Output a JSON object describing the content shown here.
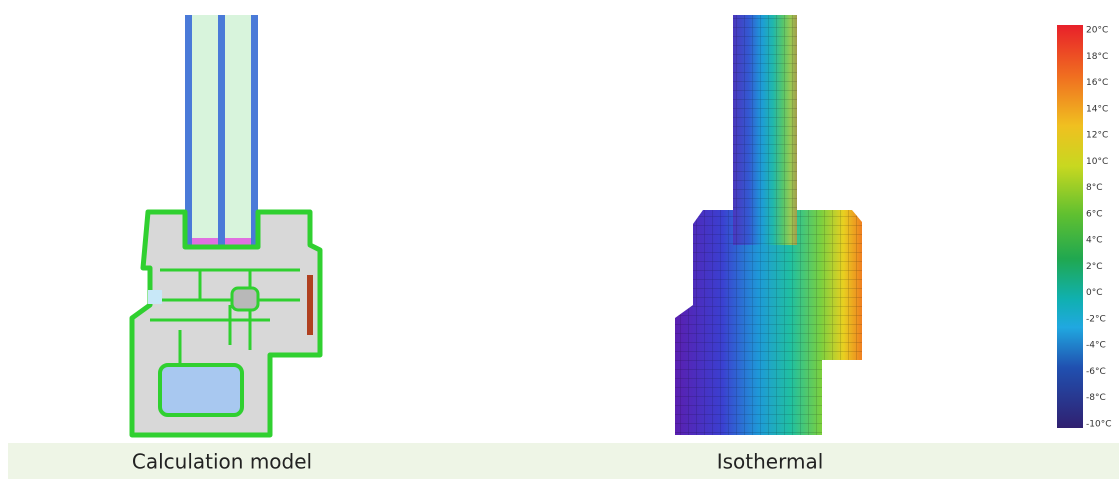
{
  "panels": [
    {
      "caption": "Calculation model"
    },
    {
      "caption": "Isothermal"
    }
  ],
  "color_scale": {
    "labels": [
      "20°C",
      "18°C",
      "16°C",
      "14°C",
      "12°C",
      "10°C",
      "8°C",
      "6°C",
      "4°C",
      "2°C",
      "0°C",
      "-2°C",
      "-4°C",
      "-6°C",
      "-8°C",
      "-10°C"
    ]
  }
}
